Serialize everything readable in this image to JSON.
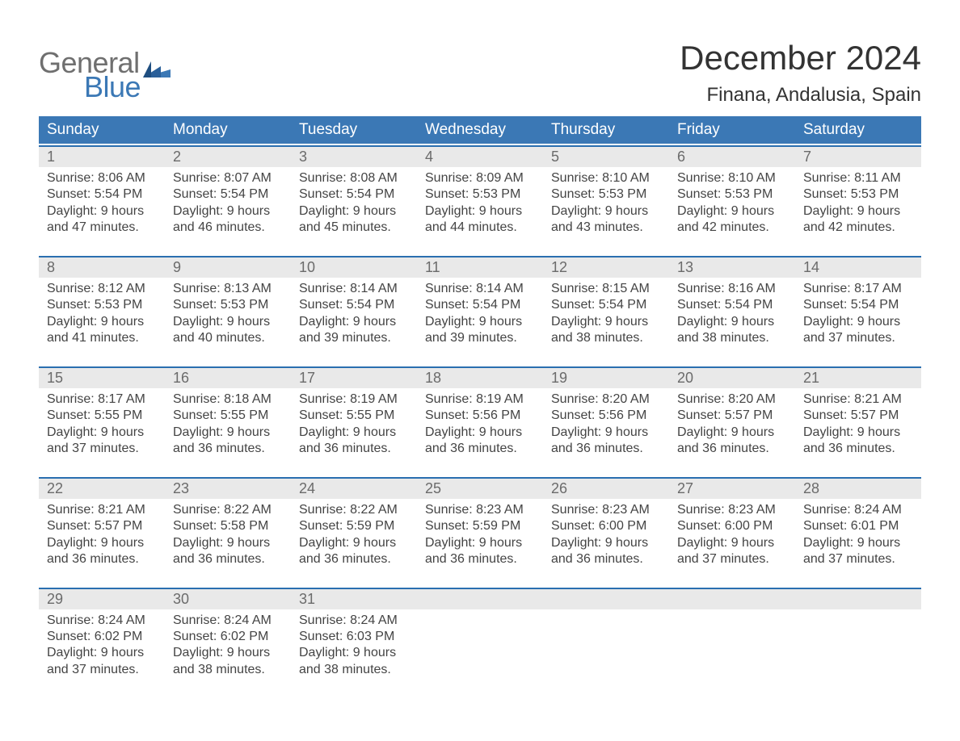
{
  "logo": {
    "line1": "General",
    "line2": "Blue"
  },
  "title": "December 2024",
  "location": "Finana, Andalusia, Spain",
  "colors": {
    "header_blue": "#3b78b5",
    "accent_blue": "#2a6fb0",
    "row_gray": "#e9e9e9",
    "logo_gray": "#6f6f6f",
    "logo_blue": "#3b78b5"
  },
  "days_of_week": [
    "Sunday",
    "Monday",
    "Tuesday",
    "Wednesday",
    "Thursday",
    "Friday",
    "Saturday"
  ],
  "weeks": [
    [
      {
        "n": "1",
        "sr": "8:06 AM",
        "ss": "5:54 PM",
        "dl": "9 hours and 47 minutes."
      },
      {
        "n": "2",
        "sr": "8:07 AM",
        "ss": "5:54 PM",
        "dl": "9 hours and 46 minutes."
      },
      {
        "n": "3",
        "sr": "8:08 AM",
        "ss": "5:54 PM",
        "dl": "9 hours and 45 minutes."
      },
      {
        "n": "4",
        "sr": "8:09 AM",
        "ss": "5:53 PM",
        "dl": "9 hours and 44 minutes."
      },
      {
        "n": "5",
        "sr": "8:10 AM",
        "ss": "5:53 PM",
        "dl": "9 hours and 43 minutes."
      },
      {
        "n": "6",
        "sr": "8:10 AM",
        "ss": "5:53 PM",
        "dl": "9 hours and 42 minutes."
      },
      {
        "n": "7",
        "sr": "8:11 AM",
        "ss": "5:53 PM",
        "dl": "9 hours and 42 minutes."
      }
    ],
    [
      {
        "n": "8",
        "sr": "8:12 AM",
        "ss": "5:53 PM",
        "dl": "9 hours and 41 minutes."
      },
      {
        "n": "9",
        "sr": "8:13 AM",
        "ss": "5:53 PM",
        "dl": "9 hours and 40 minutes."
      },
      {
        "n": "10",
        "sr": "8:14 AM",
        "ss": "5:54 PM",
        "dl": "9 hours and 39 minutes."
      },
      {
        "n": "11",
        "sr": "8:14 AM",
        "ss": "5:54 PM",
        "dl": "9 hours and 39 minutes."
      },
      {
        "n": "12",
        "sr": "8:15 AM",
        "ss": "5:54 PM",
        "dl": "9 hours and 38 minutes."
      },
      {
        "n": "13",
        "sr": "8:16 AM",
        "ss": "5:54 PM",
        "dl": "9 hours and 38 minutes."
      },
      {
        "n": "14",
        "sr": "8:17 AM",
        "ss": "5:54 PM",
        "dl": "9 hours and 37 minutes."
      }
    ],
    [
      {
        "n": "15",
        "sr": "8:17 AM",
        "ss": "5:55 PM",
        "dl": "9 hours and 37 minutes."
      },
      {
        "n": "16",
        "sr": "8:18 AM",
        "ss": "5:55 PM",
        "dl": "9 hours and 36 minutes."
      },
      {
        "n": "17",
        "sr": "8:19 AM",
        "ss": "5:55 PM",
        "dl": "9 hours and 36 minutes."
      },
      {
        "n": "18",
        "sr": "8:19 AM",
        "ss": "5:56 PM",
        "dl": "9 hours and 36 minutes."
      },
      {
        "n": "19",
        "sr": "8:20 AM",
        "ss": "5:56 PM",
        "dl": "9 hours and 36 minutes."
      },
      {
        "n": "20",
        "sr": "8:20 AM",
        "ss": "5:57 PM",
        "dl": "9 hours and 36 minutes."
      },
      {
        "n": "21",
        "sr": "8:21 AM",
        "ss": "5:57 PM",
        "dl": "9 hours and 36 minutes."
      }
    ],
    [
      {
        "n": "22",
        "sr": "8:21 AM",
        "ss": "5:57 PM",
        "dl": "9 hours and 36 minutes."
      },
      {
        "n": "23",
        "sr": "8:22 AM",
        "ss": "5:58 PM",
        "dl": "9 hours and 36 minutes."
      },
      {
        "n": "24",
        "sr": "8:22 AM",
        "ss": "5:59 PM",
        "dl": "9 hours and 36 minutes."
      },
      {
        "n": "25",
        "sr": "8:23 AM",
        "ss": "5:59 PM",
        "dl": "9 hours and 36 minutes."
      },
      {
        "n": "26",
        "sr": "8:23 AM",
        "ss": "6:00 PM",
        "dl": "9 hours and 36 minutes."
      },
      {
        "n": "27",
        "sr": "8:23 AM",
        "ss": "6:00 PM",
        "dl": "9 hours and 37 minutes."
      },
      {
        "n": "28",
        "sr": "8:24 AM",
        "ss": "6:01 PM",
        "dl": "9 hours and 37 minutes."
      }
    ],
    [
      {
        "n": "29",
        "sr": "8:24 AM",
        "ss": "6:02 PM",
        "dl": "9 hours and 37 minutes."
      },
      {
        "n": "30",
        "sr": "8:24 AM",
        "ss": "6:02 PM",
        "dl": "9 hours and 38 minutes."
      },
      {
        "n": "31",
        "sr": "8:24 AM",
        "ss": "6:03 PM",
        "dl": "9 hours and 38 minutes."
      },
      null,
      null,
      null,
      null
    ]
  ],
  "labels": {
    "sunrise": "Sunrise: ",
    "sunset": "Sunset: ",
    "daylight": "Daylight: "
  }
}
